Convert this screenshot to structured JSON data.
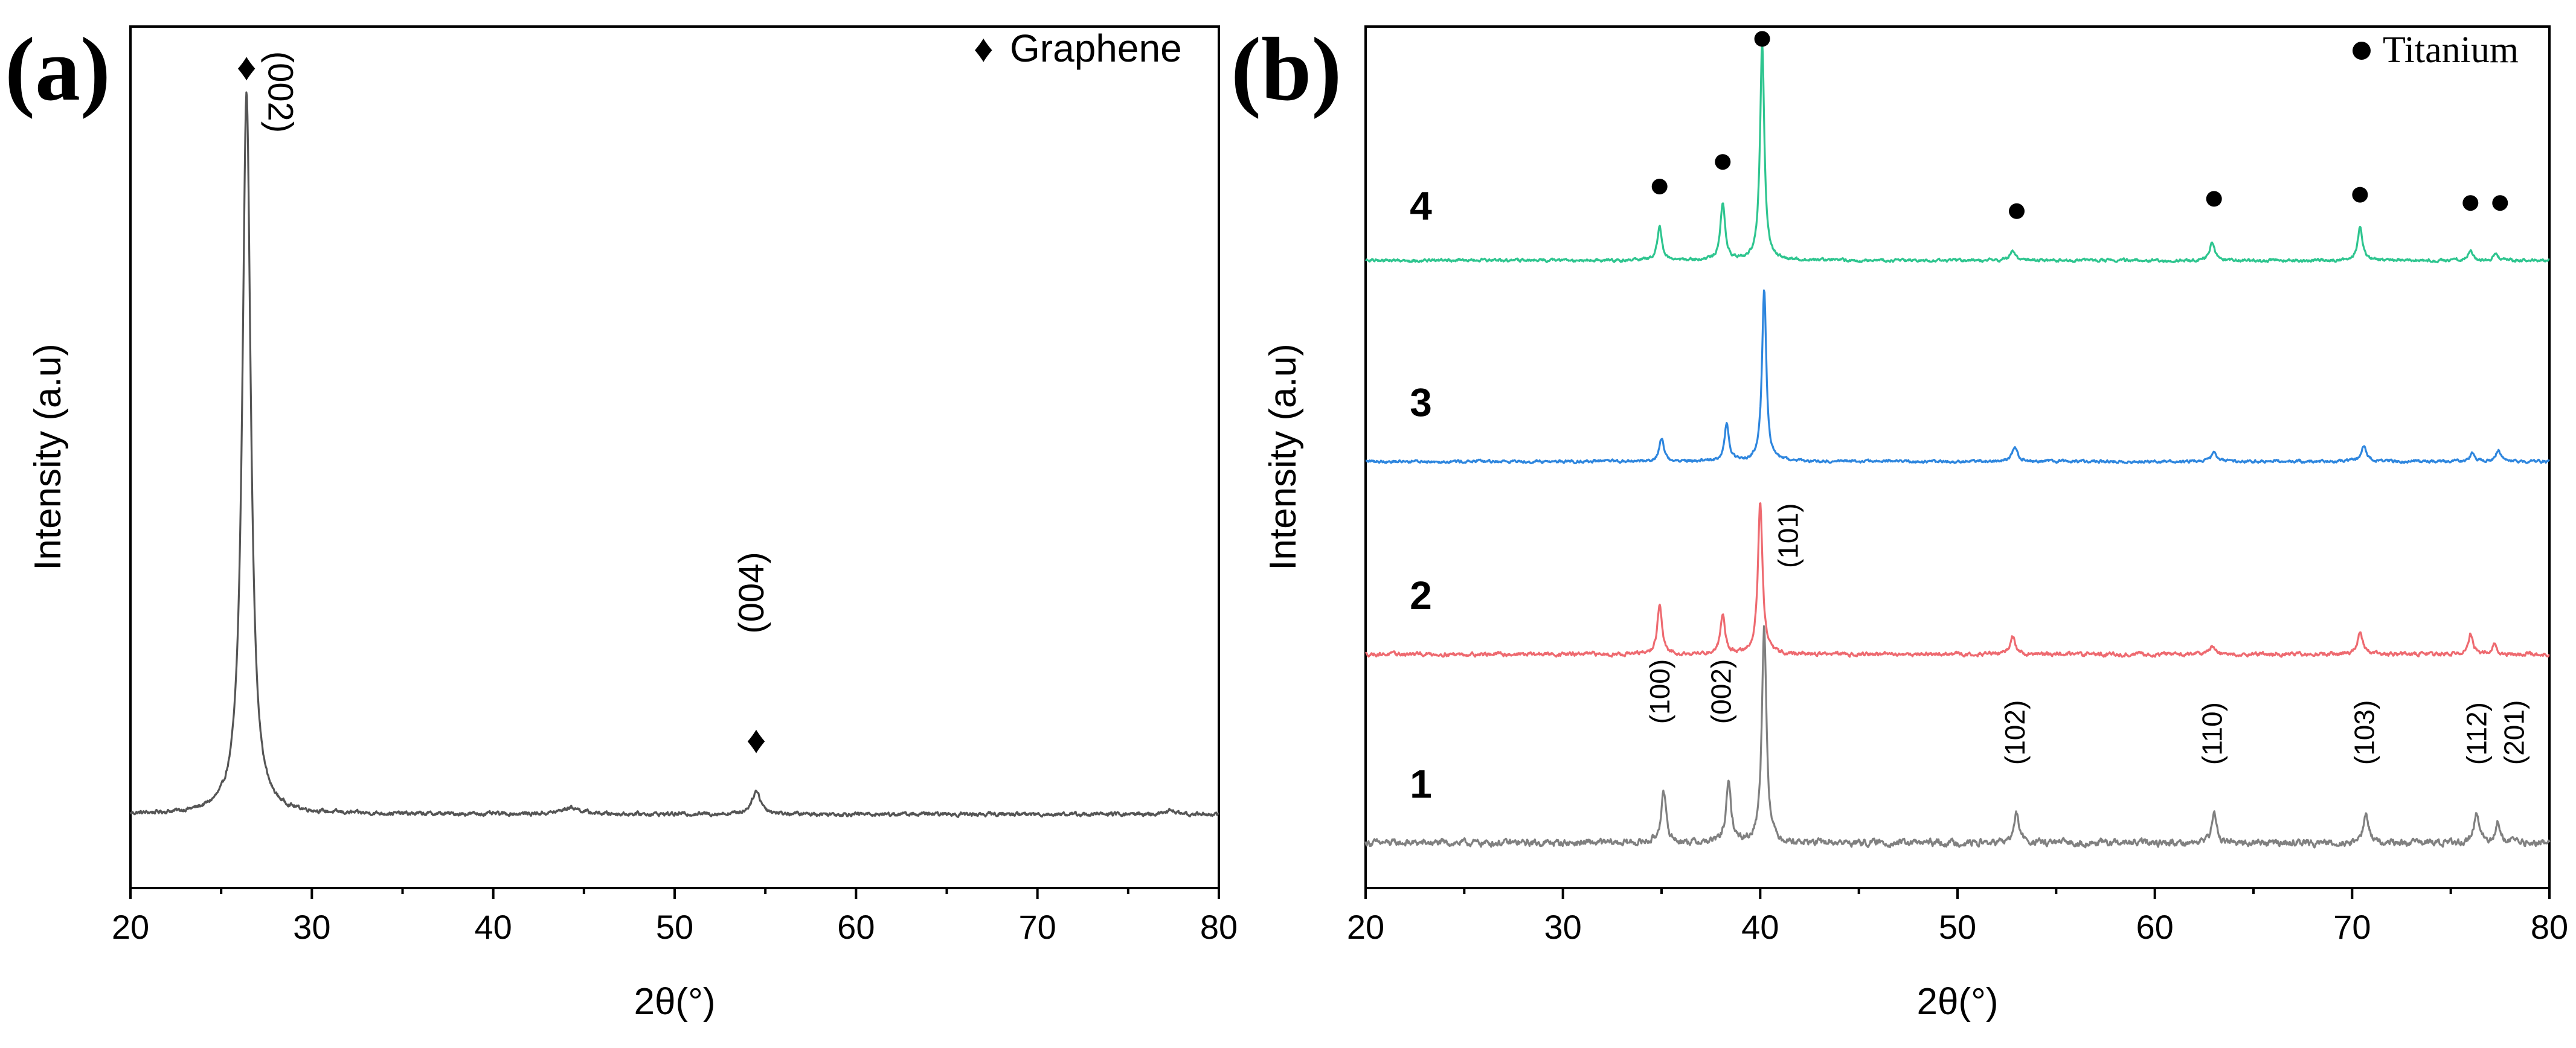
{
  "chart_data": [
    {
      "id": "a",
      "type": "line",
      "panel_label": "(a)",
      "title": "",
      "xlabel": "2θ(°)",
      "ylabel": "Intensity (a.u)",
      "xlim": [
        20,
        80
      ],
      "xticks": [
        20,
        30,
        40,
        50,
        60,
        70,
        80
      ],
      "ylim": [
        0,
        1.05
      ],
      "legend": {
        "marker": "♦",
        "text": "Graphene",
        "position": "top-right"
      },
      "series": [
        {
          "name": "Graphene",
          "color": "#555555",
          "baseline": 0.09,
          "noise": 0.004,
          "peaks": [
            {
              "x": 26.4,
              "height": 0.88,
              "width": 0.28
            },
            {
              "x": 54.5,
              "height": 0.028,
              "width": 0.3
            },
            {
              "x": 44.3,
              "height": 0.008,
              "width": 0.6
            },
            {
              "x": 77.4,
              "height": 0.006,
              "width": 0.2
            }
          ]
        }
      ],
      "annotations": [
        {
          "text": "(002)",
          "x": 27.6,
          "y": 1.02,
          "rotate": 90,
          "marker": "♦",
          "marker_x": 26.4,
          "marker_y": 0.985
        },
        {
          "text": "(004)",
          "x": 54.9,
          "y": 0.31,
          "rotate": -90,
          "marker": "♦",
          "marker_x": 54.5,
          "marker_y": 0.165
        }
      ]
    },
    {
      "id": "b",
      "type": "line",
      "panel_label": "(b)",
      "title": "",
      "xlabel": "2θ(°)",
      "ylabel": "Intensity (a.u)",
      "xlim": [
        20,
        80
      ],
      "xticks": [
        20,
        30,
        40,
        50,
        60,
        70,
        80
      ],
      "ylim": [
        0,
        1.05
      ],
      "legend": {
        "marker": "●",
        "text": "Titanium",
        "position": "top-right"
      },
      "series": [
        {
          "name": "1",
          "color": "#808080",
          "baseline": 0.055,
          "noise": 0.007,
          "peaks": [
            {
              "x": 35.1,
              "height": 0.06,
              "width": 0.16
            },
            {
              "x": 38.4,
              "height": 0.07,
              "width": 0.16
            },
            {
              "x": 40.2,
              "height": 0.265,
              "width": 0.14
            },
            {
              "x": 53.0,
              "height": 0.035,
              "width": 0.16
            },
            {
              "x": 63.0,
              "height": 0.035,
              "width": 0.16
            },
            {
              "x": 70.7,
              "height": 0.035,
              "width": 0.16
            },
            {
              "x": 76.3,
              "height": 0.035,
              "width": 0.16
            },
            {
              "x": 77.4,
              "height": 0.025,
              "width": 0.16
            }
          ]
        },
        {
          "name": "2",
          "color": "#ee6a70",
          "baseline": 0.285,
          "noise": 0.004,
          "peaks": [
            {
              "x": 34.9,
              "height": 0.06,
              "width": 0.14
            },
            {
              "x": 38.1,
              "height": 0.05,
              "width": 0.14
            },
            {
              "x": 40.0,
              "height": 0.185,
              "width": 0.14
            },
            {
              "x": 52.8,
              "height": 0.022,
              "width": 0.16
            },
            {
              "x": 62.9,
              "height": 0.01,
              "width": 0.16
            },
            {
              "x": 70.4,
              "height": 0.026,
              "width": 0.16
            },
            {
              "x": 76.0,
              "height": 0.025,
              "width": 0.14
            },
            {
              "x": 77.2,
              "height": 0.013,
              "width": 0.14
            }
          ]
        },
        {
          "name": "3",
          "color": "#2e86de",
          "baseline": 0.52,
          "noise": 0.003,
          "peaks": [
            {
              "x": 35.0,
              "height": 0.028,
              "width": 0.14
            },
            {
              "x": 38.3,
              "height": 0.045,
              "width": 0.14
            },
            {
              "x": 40.2,
              "height": 0.21,
              "width": 0.13
            },
            {
              "x": 52.9,
              "height": 0.017,
              "width": 0.16
            },
            {
              "x": 63.0,
              "height": 0.01,
              "width": 0.16
            },
            {
              "x": 70.6,
              "height": 0.02,
              "width": 0.16
            },
            {
              "x": 76.1,
              "height": 0.01,
              "width": 0.14
            },
            {
              "x": 77.4,
              "height": 0.014,
              "width": 0.14
            }
          ]
        },
        {
          "name": "4",
          "color": "#2ec58f",
          "baseline": 0.765,
          "noise": 0.003,
          "peaks": [
            {
              "x": 34.9,
              "height": 0.04,
              "width": 0.14
            },
            {
              "x": 38.1,
              "height": 0.07,
              "width": 0.14
            },
            {
              "x": 40.1,
              "height": 0.265,
              "width": 0.13
            },
            {
              "x": 52.8,
              "height": 0.012,
              "width": 0.16
            },
            {
              "x": 62.9,
              "height": 0.02,
              "width": 0.16
            },
            {
              "x": 70.4,
              "height": 0.04,
              "width": 0.14
            },
            {
              "x": 76.0,
              "height": 0.012,
              "width": 0.14
            },
            {
              "x": 77.3,
              "height": 0.008,
              "width": 0.14
            }
          ]
        }
      ],
      "series_labels": [
        {
          "text": "1",
          "x": 22.8,
          "y": 0.11
        },
        {
          "text": "2",
          "x": 22.8,
          "y": 0.34
        },
        {
          "text": "3",
          "x": 22.8,
          "y": 0.575
        },
        {
          "text": "4",
          "x": 22.8,
          "y": 0.815
        }
      ],
      "markers": [
        {
          "x": 34.9,
          "y": 0.855
        },
        {
          "x": 38.1,
          "y": 0.885
        },
        {
          "x": 40.1,
          "y": 1.035
        },
        {
          "x": 53.0,
          "y": 0.825
        },
        {
          "x": 63.0,
          "y": 0.84
        },
        {
          "x": 70.4,
          "y": 0.845
        },
        {
          "x": 76.0,
          "y": 0.835
        },
        {
          "x": 77.5,
          "y": 0.835
        }
      ],
      "annotations": [
        {
          "text": "(100)",
          "x": 35.4,
          "y": 0.2,
          "rotate": -90
        },
        {
          "text": "(002)",
          "x": 38.5,
          "y": 0.2,
          "rotate": -90
        },
        {
          "text": "(101)",
          "x": 41.9,
          "y": 0.39,
          "rotate": -90
        },
        {
          "text": "(102)",
          "x": 53.4,
          "y": 0.15,
          "rotate": -90
        },
        {
          "text": "(110)",
          "x": 63.4,
          "y": 0.15,
          "rotate": -90
        },
        {
          "text": "(103)",
          "x": 71.1,
          "y": 0.15,
          "rotate": -90
        },
        {
          "text": "(112)",
          "x": 76.8,
          "y": 0.15,
          "rotate": -90
        },
        {
          "text": "(201)",
          "x": 78.7,
          "y": 0.15,
          "rotate": -90
        }
      ]
    }
  ]
}
